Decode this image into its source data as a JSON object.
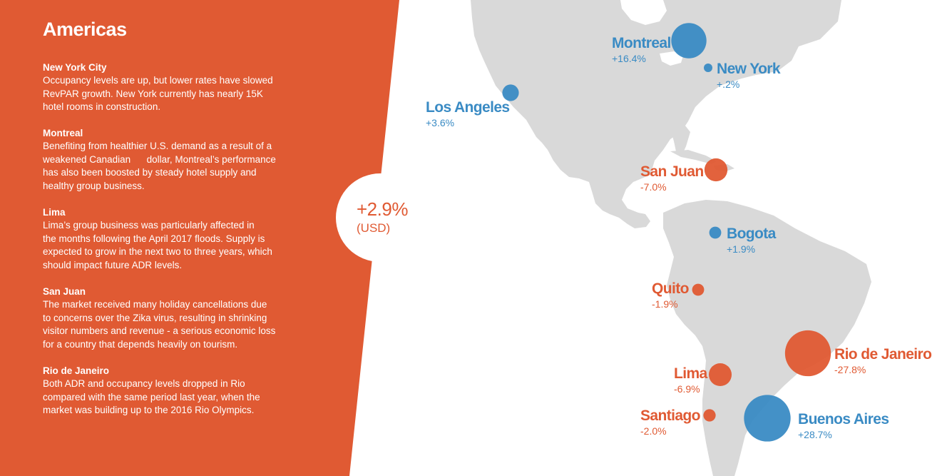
{
  "colors": {
    "panel": "#e05a33",
    "land": "#d9d9d9",
    "increase": "#3a8bc4",
    "decrease": "#e05a33"
  },
  "region": "Americas",
  "summary": {
    "value": "+2.9%",
    "unit": "(USD)"
  },
  "cities_text": [
    {
      "name": "New York City",
      "text": [
        "Occupancy levels are up, but lower rates have slowed",
        "RevPAR growth. New York currently has nearly 15K",
        "hotel rooms in construction."
      ]
    },
    {
      "name": "Montreal",
      "text": [
        "Benefiting from healthier U.S. demand as a result of a",
        "weakened Canadian      dollar, Montreal’s performance",
        "has also been boosted by steady hotel supply and",
        "healthy group business."
      ]
    },
    {
      "name": "Lima",
      "text": [
        "Lima’s group business was particularly affected in",
        "the months following the April 2017 floods. Supply is",
        "expected to grow in the next two to three years, which",
        "should impact future ADR levels."
      ]
    },
    {
      "name": "San Juan",
      "text": [
        "The market received many holiday cancellations due",
        "to concerns over the Zika virus, resulting in shrinking",
        "visitor numbers and revenue - a serious economic loss",
        "for a country that depends heavily on tourism."
      ]
    },
    {
      "name": "Rio de Janeiro",
      "text": [
        "Both ADR and occupancy levels dropped in Rio",
        "compared with the same period last year, when the",
        "market was building up to the 2016 Rio Olympics."
      ]
    }
  ],
  "markers": [
    {
      "city": "Montreal",
      "change": "+16.4%",
      "value": 16.4
    },
    {
      "city": "New York",
      "change": "+.2%",
      "value": 0.2
    },
    {
      "city": "Los Angeles",
      "change": "+3.6%",
      "value": 3.6
    },
    {
      "city": "San Juan",
      "change": "-7.0%",
      "value": -7.0
    },
    {
      "city": "Bogota",
      "change": "+1.9%",
      "value": 1.9
    },
    {
      "city": "Quito",
      "change": "-1.9%",
      "value": -1.9
    },
    {
      "city": "Rio de Janeiro",
      "change": "-27.8%",
      "value": -27.8
    },
    {
      "city": "Lima",
      "change": "-6.9%",
      "value": -6.9
    },
    {
      "city": "Santiago",
      "change": "-2.0%",
      "value": -2.0
    },
    {
      "city": "Buenos Aires",
      "change": "+28.7%",
      "value": 28.7
    }
  ]
}
